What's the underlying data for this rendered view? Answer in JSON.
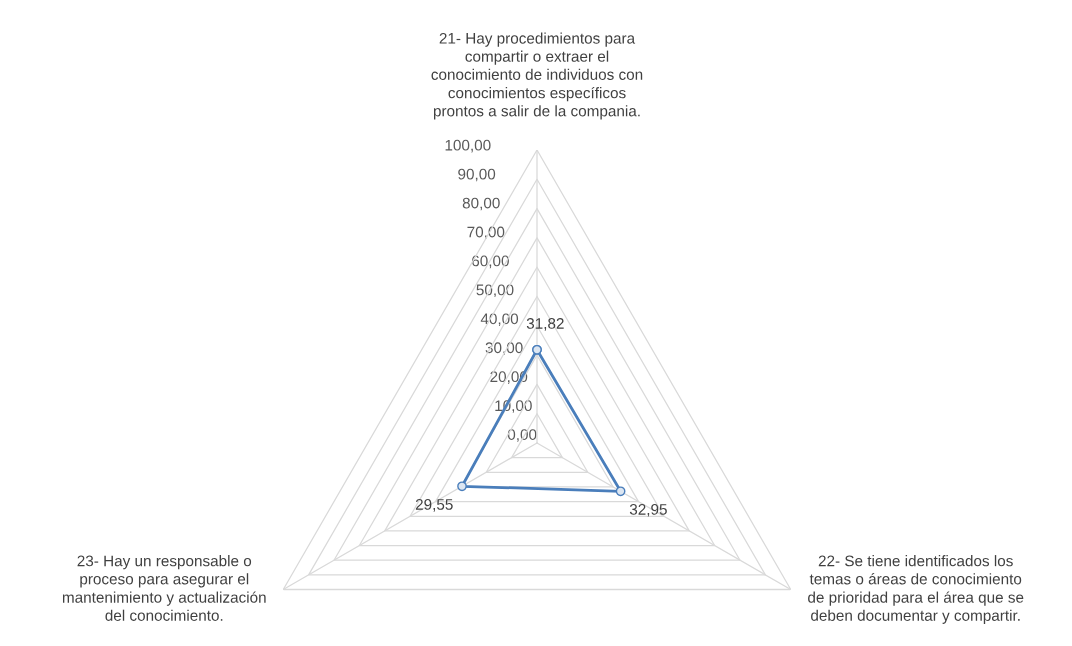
{
  "chart_data": {
    "type": "radar",
    "categories": [
      "21- Hay procedimientos para\ncompartir o extraer el\nconocimiento de individuos con\nconocimientos específicos\nprontos a salir de la compania.",
      "22- Se tiene identificados los\ntemas o áreas de conocimiento\nde prioridad para el área que se\ndeben documentar y compartir.",
      "23- Hay un responsable o\nproceso para asegurar el\nmantenimiento y actualización\ndel conocimiento."
    ],
    "series": [
      {
        "color": "#4a7ebb",
        "values": [
          31.82,
          32.95,
          29.55
        ],
        "value_labels": [
          "31,82",
          "32,95",
          "29,55"
        ]
      }
    ],
    "ylim": [
      0,
      100
    ],
    "yticks": [
      {
        "value": 0,
        "label": "0,00"
      },
      {
        "value": 10,
        "label": "10,00"
      },
      {
        "value": 20,
        "label": "20,00"
      },
      {
        "value": 30,
        "label": "30,00"
      },
      {
        "value": 40,
        "label": "40,00"
      },
      {
        "value": 50,
        "label": "50,00"
      },
      {
        "value": 60,
        "label": "60,00"
      },
      {
        "value": 70,
        "label": "70,00"
      },
      {
        "value": 80,
        "label": "80,00"
      },
      {
        "value": 90,
        "label": "90,00"
      },
      {
        "value": 100,
        "label": "100,00"
      }
    ],
    "grid": true,
    "marker": "circle",
    "legend": false
  }
}
